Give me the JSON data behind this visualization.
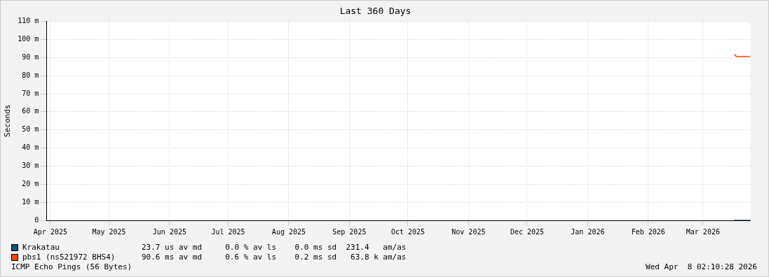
{
  "chart_data": {
    "type": "line",
    "title": "Last 360 Days",
    "ylabel": "Seconds",
    "xlim": [
      "2025-04-13",
      "2026-04-08T02:10"
    ],
    "xticks": [
      {
        "value": "2025-04-15",
        "label": "Apr 2025"
      },
      {
        "value": "2025-05-15",
        "label": "May 2025"
      },
      {
        "value": "2025-06-15",
        "label": "Jun 2025"
      },
      {
        "value": "2025-07-15",
        "label": "Jul 2025"
      },
      {
        "value": "2025-08-15",
        "label": "Aug 2025"
      },
      {
        "value": "2025-09-15",
        "label": "Sep 2025"
      },
      {
        "value": "2025-10-15",
        "label": "Oct 2025"
      },
      {
        "value": "2025-11-15",
        "label": "Nov 2025"
      },
      {
        "value": "2025-12-15",
        "label": "Dec 2025"
      },
      {
        "value": "2026-01-15",
        "label": "Jan 2026"
      },
      {
        "value": "2026-02-15",
        "label": "Feb 2026"
      },
      {
        "value": "2026-03-15",
        "label": "Mar 2026"
      }
    ],
    "ylim": [
      0,
      110
    ],
    "yticks": [
      0,
      {
        "value": 10,
        "label": "10 m"
      },
      {
        "value": 20,
        "label": "20 m"
      },
      {
        "value": 30,
        "label": "30 m"
      },
      {
        "value": 40,
        "label": "40 m"
      },
      {
        "value": 50,
        "label": "50 m"
      },
      {
        "value": 60,
        "label": "60 m"
      },
      {
        "value": 70,
        "label": "70 m"
      },
      {
        "value": 80,
        "label": "80 m"
      },
      {
        "value": 90,
        "label": "90 m"
      },
      {
        "value": 100,
        "label": "100 m"
      },
      {
        "value": 110,
        "label": "110 m"
      }
    ],
    "grid": true,
    "legend": "bottom",
    "marker": "none",
    "series": [
      {
        "name": "Krakatau",
        "color": "#0f4c8a",
        "x": [
          "2026-03-31",
          "2026-04-08"
        ],
        "values": [
          0,
          0
        ]
      },
      {
        "name": "pbs1 (ns521972 BHS4)",
        "color": "#ff4500",
        "x": [
          "2026-03-31",
          "2026-03-31T12:00",
          "2026-04-01",
          "2026-04-08"
        ],
        "values": [
          91.5,
          91.5,
          90.6,
          90.6
        ]
      }
    ],
    "annotations": [
      "23.7 us av md     0.0 % av ls    0.0 ms sd  231.4   am/as",
      "90.6 ms av md     0.6 % av ls    0.2 ms sd   63.8 k am/as",
      "ICMP Echo Pings (56 Bytes)",
      "Wed Apr  8 02:10:28 2026"
    ]
  }
}
